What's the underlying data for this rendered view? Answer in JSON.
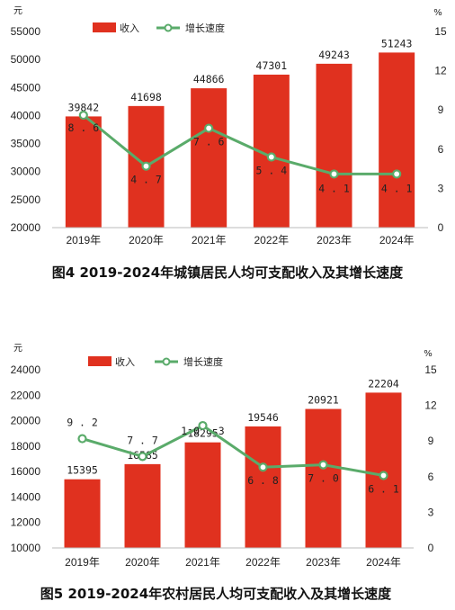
{
  "chart_data": [
    {
      "type": "bar",
      "title": "图4 2019-2024年城镇居民人均可支配收入及其增长速度",
      "categories": [
        "2019年",
        "2020年",
        "2021年",
        "2022年",
        "2023年",
        "2024年"
      ],
      "left_unit": "元",
      "right_unit": "%",
      "ylim": [
        20000,
        55000
      ],
      "y_ticks": [
        20000,
        25000,
        30000,
        35000,
        40000,
        45000,
        50000,
        55000
      ],
      "y2lim": [
        0,
        15
      ],
      "y2_ticks": [
        0,
        3,
        6,
        9,
        12,
        15
      ],
      "legend_position": "top",
      "series": [
        {
          "name": "收入",
          "type": "bar",
          "color": "#e0311f",
          "values": [
            39842,
            41698,
            44866,
            47301,
            49243,
            51243
          ]
        },
        {
          "name": "增长速度",
          "type": "line",
          "axis": "right",
          "color": "#5aab6a",
          "values": [
            8.6,
            4.7,
            7.6,
            5.4,
            4.1,
            4.1
          ]
        }
      ]
    },
    {
      "type": "bar",
      "title": "图5 2019-2024年农村居民人均可支配收入及其增长速度",
      "categories": [
        "2019年",
        "2020年",
        "2021年",
        "2022年",
        "2023年",
        "2024年"
      ],
      "left_unit": "元",
      "right_unit": "%",
      "ylim": [
        10000,
        24000
      ],
      "y_ticks": [
        10000,
        12000,
        14000,
        16000,
        18000,
        20000,
        22000,
        24000
      ],
      "y2lim": [
        0,
        15
      ],
      "y2_ticks": [
        0,
        3,
        6,
        9,
        12,
        15
      ],
      "legend_position": "top",
      "series": [
        {
          "name": "收入",
          "type": "bar",
          "color": "#e0311f",
          "values": [
            15395,
            16585,
            18295,
            19546,
            20921,
            22204
          ]
        },
        {
          "name": "增长速度",
          "type": "line",
          "axis": "right",
          "color": "#5aab6a",
          "values": [
            9.2,
            7.7,
            10.3,
            6.8,
            7.0,
            6.1
          ]
        }
      ]
    }
  ]
}
